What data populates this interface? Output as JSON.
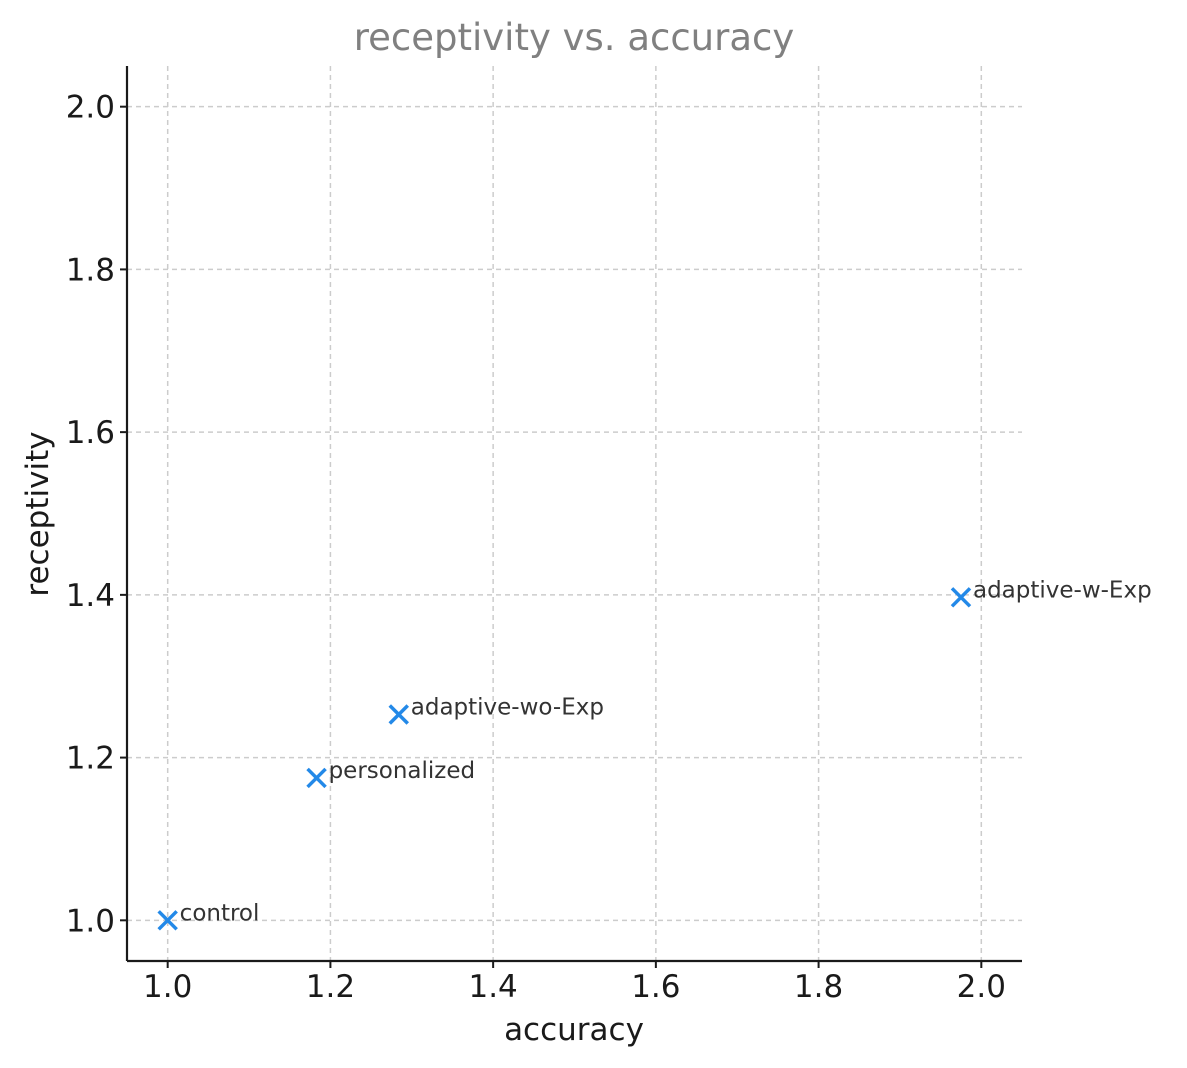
{
  "chart_data": {
    "type": "scatter",
    "title": "receptivity vs. accuracy",
    "xlabel": "accuracy",
    "ylabel": "receptivity",
    "xlim": [
      0.95,
      2.05
    ],
    "ylim": [
      0.95,
      2.05
    ],
    "xticks": [
      1.0,
      1.2,
      1.4,
      1.6,
      1.8,
      2.0
    ],
    "yticks": [
      1.0,
      1.2,
      1.4,
      1.6,
      1.8,
      2.0
    ],
    "xtick_labels": [
      "1.0",
      "1.2",
      "1.4",
      "1.6",
      "1.8",
      "2.0"
    ],
    "ytick_labels": [
      "1.0",
      "1.2",
      "1.4",
      "1.6",
      "1.8",
      "2.0"
    ],
    "grid": true,
    "marker": "x",
    "marker_color": "#2389e8",
    "points": [
      {
        "label": "control",
        "x": 1.0,
        "y": 1.0
      },
      {
        "label": "personalized",
        "x": 1.183,
        "y": 1.175
      },
      {
        "label": "adaptive-wo-Exp",
        "x": 1.284,
        "y": 1.253
      },
      {
        "label": "adaptive-w-Exp",
        "x": 1.975,
        "y": 1.397
      }
    ]
  }
}
